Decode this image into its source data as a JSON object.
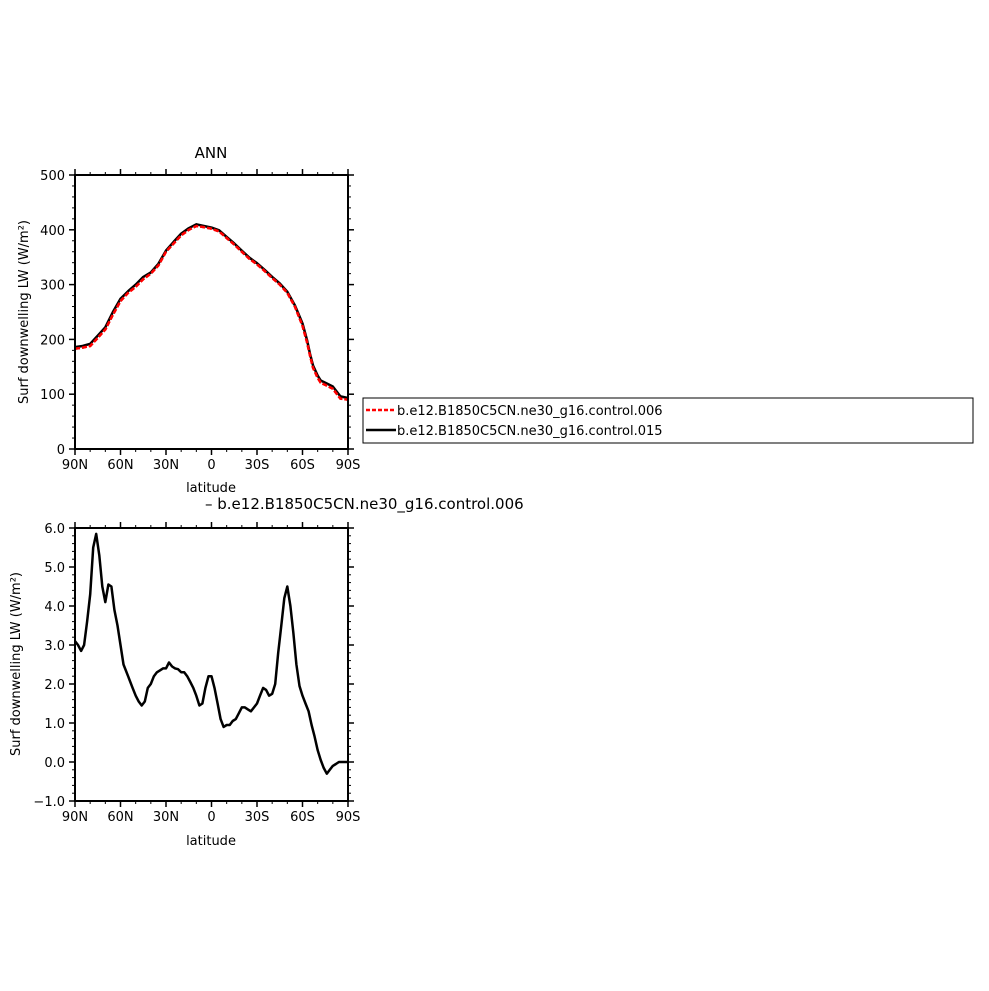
{
  "chart_data": [
    {
      "type": "line",
      "title": "ANN",
      "xlabel": "latitude",
      "ylabel": "Surf downwelling LW (W/m²)",
      "xlim": [
        90,
        -90
      ],
      "ylim": [
        0,
        500
      ],
      "xticks": [
        {
          "value": 90,
          "label": "90N"
        },
        {
          "value": 60,
          "label": "60N"
        },
        {
          "value": 30,
          "label": "30N"
        },
        {
          "value": 0,
          "label": "0"
        },
        {
          "value": -30,
          "label": "30S"
        },
        {
          "value": -60,
          "label": "60S"
        },
        {
          "value": -90,
          "label": "90S"
        }
      ],
      "yticks": [
        {
          "value": 0,
          "label": "0"
        },
        {
          "value": 100,
          "label": "100"
        },
        {
          "value": 200,
          "label": "200"
        },
        {
          "value": 300,
          "label": "300"
        },
        {
          "value": 400,
          "label": "400"
        },
        {
          "value": 500,
          "label": "500"
        }
      ],
      "x": [
        90,
        85,
        80,
        75,
        70,
        65,
        60,
        55,
        50,
        45,
        40,
        35,
        30,
        25,
        20,
        15,
        10,
        5,
        0,
        -5,
        -10,
        -15,
        -20,
        -25,
        -30,
        -35,
        -40,
        -45,
        -50,
        -55,
        -60,
        -63,
        -65,
        -67,
        -70,
        -72,
        -75,
        -80,
        -85,
        -90
      ],
      "series": [
        {
          "name": "b.e12.B1850C5CN.ne30_g16.control.006",
          "color": "#ff0000",
          "dash": true,
          "values": [
            183,
            185,
            188,
            203,
            218,
            245,
            270,
            285,
            296,
            310,
            320,
            335,
            360,
            375,
            390,
            400,
            407,
            405,
            402,
            397,
            385,
            373,
            360,
            347,
            337,
            325,
            312,
            300,
            285,
            260,
            225,
            195,
            170,
            148,
            130,
            121,
            117,
            110,
            92,
            90
          ]
        },
        {
          "name": "b.e12.B1850C5CN.ne30_g16.control.015",
          "color": "#000000",
          "dash": false,
          "values": [
            186,
            188,
            192,
            207,
            222,
            250,
            274,
            288,
            300,
            314,
            322,
            338,
            362,
            378,
            393,
            403,
            410,
            407,
            404,
            399,
            387,
            375,
            362,
            349,
            339,
            327,
            314,
            302,
            287,
            262,
            229,
            199,
            173,
            152,
            134,
            125,
            121,
            114,
            96,
            93
          ]
        }
      ],
      "legend": {
        "placement": "right",
        "entries": [
          {
            "label": "b.e12.B1850C5CN.ne30_g16.control.006",
            "color": "#ff0000",
            "dash": true
          },
          {
            "label": "b.e12.B1850C5CN.ne30_g16.control.015",
            "color": "#000000",
            "dash": false
          }
        ]
      }
    },
    {
      "type": "line",
      "title": "– b.e12.B1850C5CN.ne30_g16.control.006",
      "xlabel": "latitude",
      "ylabel": "Surf downwelling LW (W/m²)",
      "xlim": [
        90,
        -90
      ],
      "ylim": [
        -1.0,
        6.0
      ],
      "xticks": [
        {
          "value": 90,
          "label": "90N"
        },
        {
          "value": 60,
          "label": "60N"
        },
        {
          "value": 30,
          "label": "30N"
        },
        {
          "value": 0,
          "label": "0"
        },
        {
          "value": -30,
          "label": "30S"
        },
        {
          "value": -60,
          "label": "60S"
        },
        {
          "value": -90,
          "label": "90S"
        }
      ],
      "yticks": [
        {
          "value": -1.0,
          "label": "−1.0"
        },
        {
          "value": 0.0,
          "label": "0.0"
        },
        {
          "value": 1.0,
          "label": "1.0"
        },
        {
          "value": 2.0,
          "label": "2.0"
        },
        {
          "value": 3.0,
          "label": "3.0"
        },
        {
          "value": 4.0,
          "label": "4.0"
        },
        {
          "value": 5.0,
          "label": "5.0"
        },
        {
          "value": 6.0,
          "label": "6.0"
        }
      ],
      "x": [
        90,
        88,
        86,
        84,
        82,
        80,
        78,
        76,
        74,
        72,
        70,
        68,
        66,
        64,
        62,
        60,
        58,
        55,
        52,
        50,
        48,
        46,
        44,
        42,
        40,
        38,
        36,
        34,
        32,
        30,
        28,
        26,
        24,
        22,
        20,
        18,
        16,
        14,
        12,
        10,
        8,
        6,
        4,
        2,
        0,
        -2,
        -4,
        -6,
        -8,
        -10,
        -12,
        -14,
        -16,
        -18,
        -20,
        -22,
        -24,
        -26,
        -28,
        -30,
        -32,
        -34,
        -36,
        -38,
        -40,
        -42,
        -44,
        -46,
        -48,
        -50,
        -52,
        -54,
        -56,
        -58,
        -60,
        -62,
        -64,
        -66,
        -68,
        -70,
        -72,
        -74,
        -76,
        -78,
        -80,
        -82,
        -84,
        -86,
        -88,
        -90
      ],
      "series": [
        {
          "name": "",
          "color": "#000000",
          "dash": false,
          "values": [
            3.1,
            3.0,
            2.85,
            3.0,
            3.6,
            4.3,
            5.5,
            5.85,
            5.3,
            4.5,
            4.1,
            4.55,
            4.5,
            3.9,
            3.5,
            3.0,
            2.5,
            2.2,
            1.9,
            1.7,
            1.55,
            1.45,
            1.55,
            1.9,
            2.0,
            2.2,
            2.3,
            2.35,
            2.4,
            2.4,
            2.55,
            2.45,
            2.4,
            2.38,
            2.3,
            2.3,
            2.2,
            2.05,
            1.9,
            1.7,
            1.45,
            1.5,
            1.9,
            2.2,
            2.2,
            1.9,
            1.5,
            1.1,
            0.9,
            0.95,
            0.95,
            1.05,
            1.1,
            1.25,
            1.4,
            1.4,
            1.35,
            1.3,
            1.4,
            1.5,
            1.7,
            1.9,
            1.85,
            1.7,
            1.75,
            2.0,
            2.8,
            3.5,
            4.2,
            4.5,
            4.0,
            3.3,
            2.5,
            1.95,
            1.7,
            1.5,
            1.3,
            0.95,
            0.65,
            0.3,
            0.05,
            -0.15,
            -0.3,
            -0.2,
            -0.1,
            -0.05,
            0.0,
            0.0,
            0.0,
            0.0
          ]
        }
      ]
    }
  ]
}
